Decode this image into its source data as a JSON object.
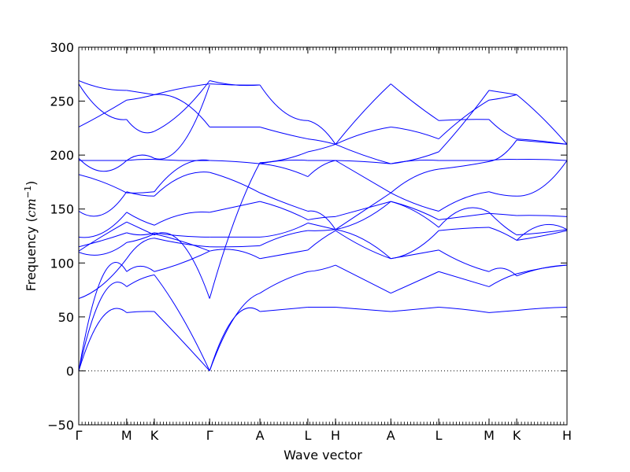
{
  "chart_data": {
    "type": "line",
    "xlabel": "Wave vector",
    "ylabel": "Frequency",
    "ylabel_unit_base": "cm",
    "ylabel_unit_exp": "−1",
    "ylim": [
      -50,
      300
    ],
    "yticks": [
      -50,
      0,
      50,
      100,
      150,
      200,
      250,
      300
    ],
    "zero_line": "dotted",
    "line_color": "#0000ff",
    "x_ticks": [
      {
        "label": "Γ",
        "pos": 0.0
      },
      {
        "label": "M",
        "pos": 1.0
      },
      {
        "label": "K",
        "pos": 1.5774
      },
      {
        "label": "Γ",
        "pos": 2.7321
      },
      {
        "label": "A",
        "pos": 3.7821
      },
      {
        "label": "L",
        "pos": 4.7821
      },
      {
        "label": "H",
        "pos": 5.3595
      },
      {
        "label": "A",
        "pos": 6.5142
      },
      {
        "label": "L",
        "pos": 7.5142
      },
      {
        "label": "M",
        "pos": 8.5642
      },
      {
        "label": "K",
        "pos": 9.1416
      },
      {
        "label": "H",
        "pos": 10.1916
      }
    ],
    "xlim": [
      0,
      10.1916
    ],
    "segments": [
      {
        "from": "Γ",
        "to": "M",
        "x0": 0.0,
        "x1": 1.0,
        "bands": [
          [
            0,
            50,
            54
          ],
          [
            0,
            70,
            78
          ],
          [
            0,
            88,
            92
          ],
          [
            67,
            80,
            104
          ],
          [
            110,
            108,
            119
          ],
          [
            115,
            121,
            128
          ],
          [
            111,
            125,
            138
          ],
          [
            124,
            128,
            147
          ],
          [
            148,
            145,
            166
          ],
          [
            182,
            175,
            165
          ],
          [
            195,
            195,
            195
          ],
          [
            197,
            185,
            195
          ],
          [
            226,
            238,
            251
          ],
          [
            266,
            240,
            233
          ],
          [
            269,
            262,
            260
          ]
        ]
      },
      {
        "from": "M",
        "to": "K",
        "x0": 1.0,
        "x1": 1.5774,
        "bands": [
          [
            54,
            55,
            55
          ],
          [
            78,
            85,
            89
          ],
          [
            92,
            97,
            92
          ],
          [
            104,
            118,
            123
          ],
          [
            119,
            122,
            127
          ],
          [
            128,
            126,
            128
          ],
          [
            138,
            132,
            126
          ],
          [
            147,
            140,
            135
          ],
          [
            166,
            163,
            162
          ],
          [
            165,
            165,
            166
          ],
          [
            195,
            196,
            196
          ],
          [
            195,
            200,
            197
          ],
          [
            251,
            253,
            256
          ],
          [
            233,
            222,
            222
          ],
          [
            260,
            258,
            256
          ]
        ]
      },
      {
        "from": "K",
        "to": "Γ",
        "x0": 1.5774,
        "x1": 2.7321,
        "bands": [
          [
            55,
            28,
            0
          ],
          [
            89,
            50,
            0
          ],
          [
            92,
            100,
            111
          ],
          [
            123,
            118,
            115
          ],
          [
            127,
            120,
            111
          ],
          [
            128,
            125,
            124
          ],
          [
            126,
            118,
            67
          ],
          [
            135,
            145,
            147
          ],
          [
            162,
            180,
            184
          ],
          [
            166,
            190,
            195
          ],
          [
            196,
            195,
            195
          ],
          [
            197,
            210,
            265
          ],
          [
            256,
            250,
            226
          ],
          [
            222,
            240,
            269
          ],
          [
            256,
            262,
            266
          ]
        ]
      },
      {
        "from": "Γ",
        "to": "A",
        "x0": 2.7321,
        "x1": 3.7821,
        "bands": [
          [
            0,
            50,
            55
          ],
          [
            0,
            50,
            72
          ],
          [
            111,
            112,
            104
          ],
          [
            115,
            115,
            116
          ],
          [
            67,
            140,
            193
          ],
          [
            124,
            124,
            124
          ],
          [
            147,
            152,
            157
          ],
          [
            184,
            176,
            165
          ],
          [
            195,
            194,
            192
          ],
          [
            226,
            226,
            226
          ],
          [
            266,
            265,
            265
          ],
          [
            269,
            265,
            265
          ]
        ]
      },
      {
        "from": "A",
        "to": "L",
        "x0": 3.7821,
        "x1": 4.7821,
        "bands": [
          [
            55,
            57,
            59
          ],
          [
            72,
            84,
            92
          ],
          [
            104,
            108,
            112
          ],
          [
            116,
            125,
            130
          ],
          [
            124,
            128,
            137
          ],
          [
            157,
            150,
            140
          ],
          [
            165,
            156,
            148
          ],
          [
            192,
            188,
            180
          ],
          [
            192,
            195,
            195
          ],
          [
            226,
            220,
            215
          ],
          [
            265,
            240,
            232
          ],
          [
            193,
            196,
            203
          ]
        ]
      },
      {
        "from": "L",
        "to": "H",
        "x0": 4.7821,
        "x1": 5.3595,
        "bands": [
          [
            59,
            59,
            59
          ],
          [
            92,
            94,
            98
          ],
          [
            112,
            122,
            130
          ],
          [
            130,
            130,
            131
          ],
          [
            137,
            134,
            131
          ],
          [
            140,
            142,
            143
          ],
          [
            148,
            145,
            131
          ],
          [
            180,
            190,
            195
          ],
          [
            195,
            195,
            195
          ],
          [
            215,
            213,
            210
          ],
          [
            232,
            225,
            210
          ],
          [
            203,
            206,
            210
          ]
        ]
      },
      {
        "from": "H",
        "to": "A",
        "x0": 5.3595,
        "x1": 6.5142,
        "bands": [
          [
            59,
            57,
            55
          ],
          [
            98,
            85,
            72
          ],
          [
            130,
            115,
            104
          ],
          [
            131,
            122,
            104
          ],
          [
            131,
            140,
            157
          ],
          [
            143,
            150,
            157
          ],
          [
            131,
            148,
            165
          ],
          [
            195,
            180,
            165
          ],
          [
            195,
            194,
            192
          ],
          [
            210,
            220,
            226
          ],
          [
            210,
            240,
            266
          ],
          [
            210,
            200,
            192
          ]
        ]
      },
      {
        "from": "A",
        "to": "L",
        "x0": 6.5142,
        "x1": 7.5142,
        "bands": [
          [
            55,
            57,
            59
          ],
          [
            72,
            82,
            92
          ],
          [
            104,
            108,
            112
          ],
          [
            104,
            112,
            130
          ],
          [
            157,
            148,
            133
          ],
          [
            157,
            150,
            140
          ],
          [
            165,
            155,
            148
          ],
          [
            165,
            180,
            187
          ],
          [
            192,
            195,
            195
          ],
          [
            226,
            222,
            215
          ],
          [
            266,
            248,
            232
          ],
          [
            192,
            196,
            203
          ]
        ]
      },
      {
        "from": "L",
        "to": "M",
        "x0": 7.5142,
        "x1": 8.5642,
        "bands": [
          [
            59,
            57,
            54
          ],
          [
            92,
            85,
            78
          ],
          [
            112,
            100,
            92
          ],
          [
            130,
            132,
            133
          ],
          [
            133,
            150,
            147
          ],
          [
            140,
            143,
            146
          ],
          [
            148,
            160,
            166
          ],
          [
            187,
            190,
            194
          ],
          [
            195,
            195,
            195
          ],
          [
            215,
            235,
            251
          ],
          [
            232,
            233,
            233
          ],
          [
            203,
            230,
            260
          ]
        ]
      },
      {
        "from": "M",
        "to": "K",
        "x0": 8.5642,
        "x1": 9.1416,
        "bands": [
          [
            54,
            55,
            56
          ],
          [
            78,
            85,
            90
          ],
          [
            92,
            95,
            88
          ],
          [
            133,
            128,
            121
          ],
          [
            147,
            135,
            126
          ],
          [
            146,
            145,
            144
          ],
          [
            166,
            163,
            162
          ],
          [
            194,
            200,
            214
          ],
          [
            195,
            196,
            196
          ],
          [
            251,
            253,
            256
          ],
          [
            233,
            222,
            215
          ],
          [
            260,
            258,
            256
          ]
        ]
      },
      {
        "from": "K",
        "to": "H",
        "x0": 9.1416,
        "x1": 10.1916,
        "bands": [
          [
            56,
            58,
            59
          ],
          [
            90,
            95,
            98
          ],
          [
            88,
            95,
            98
          ],
          [
            121,
            125,
            130
          ],
          [
            126,
            128,
            131
          ],
          [
            144,
            144,
            143
          ],
          [
            162,
            170,
            195
          ],
          [
            214,
            212,
            210
          ],
          [
            196,
            196,
            195
          ],
          [
            256,
            235,
            210
          ],
          [
            215,
            213,
            210
          ],
          [
            121,
            135,
            131
          ]
        ]
      }
    ]
  }
}
